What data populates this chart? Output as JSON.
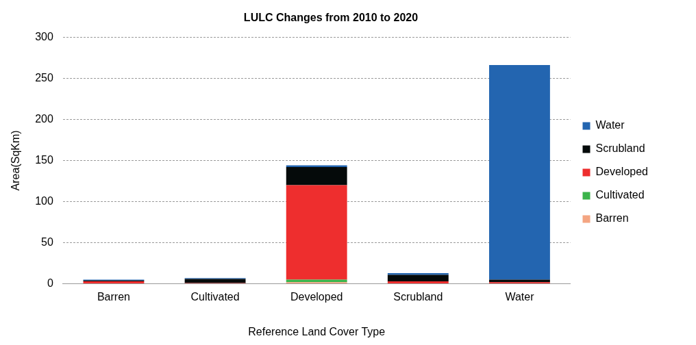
{
  "chart_data": {
    "type": "bar",
    "title": "LULC Changes from 2010 to 2020",
    "xlabel": "Reference Land Cover Type",
    "ylabel": "Area(SqKm)",
    "categories": [
      "Barren",
      "Cultivated",
      "Developed",
      "Scrubland",
      "Water"
    ],
    "series": [
      {
        "name": "Barren",
        "color": "#f4a582",
        "values": [
          0,
          0,
          2,
          0,
          0
        ]
      },
      {
        "name": "Cultivated",
        "color": "#3cb44b",
        "values": [
          0,
          0,
          3,
          0,
          0
        ]
      },
      {
        "name": "Developed",
        "color": "#ee2e2e",
        "values": [
          3,
          1,
          115,
          3,
          2
        ]
      },
      {
        "name": "Scrubland",
        "color": "#050a0a",
        "values": [
          1,
          5,
          22,
          8,
          3
        ]
      },
      {
        "name": "Water",
        "color": "#2365b0",
        "values": [
          1,
          1,
          2,
          2,
          261
        ]
      }
    ],
    "stacked": true,
    "ylim": [
      0,
      300
    ],
    "yticks": [
      0,
      50,
      100,
      150,
      200,
      250,
      300
    ],
    "grid": "y",
    "legend": "right"
  }
}
